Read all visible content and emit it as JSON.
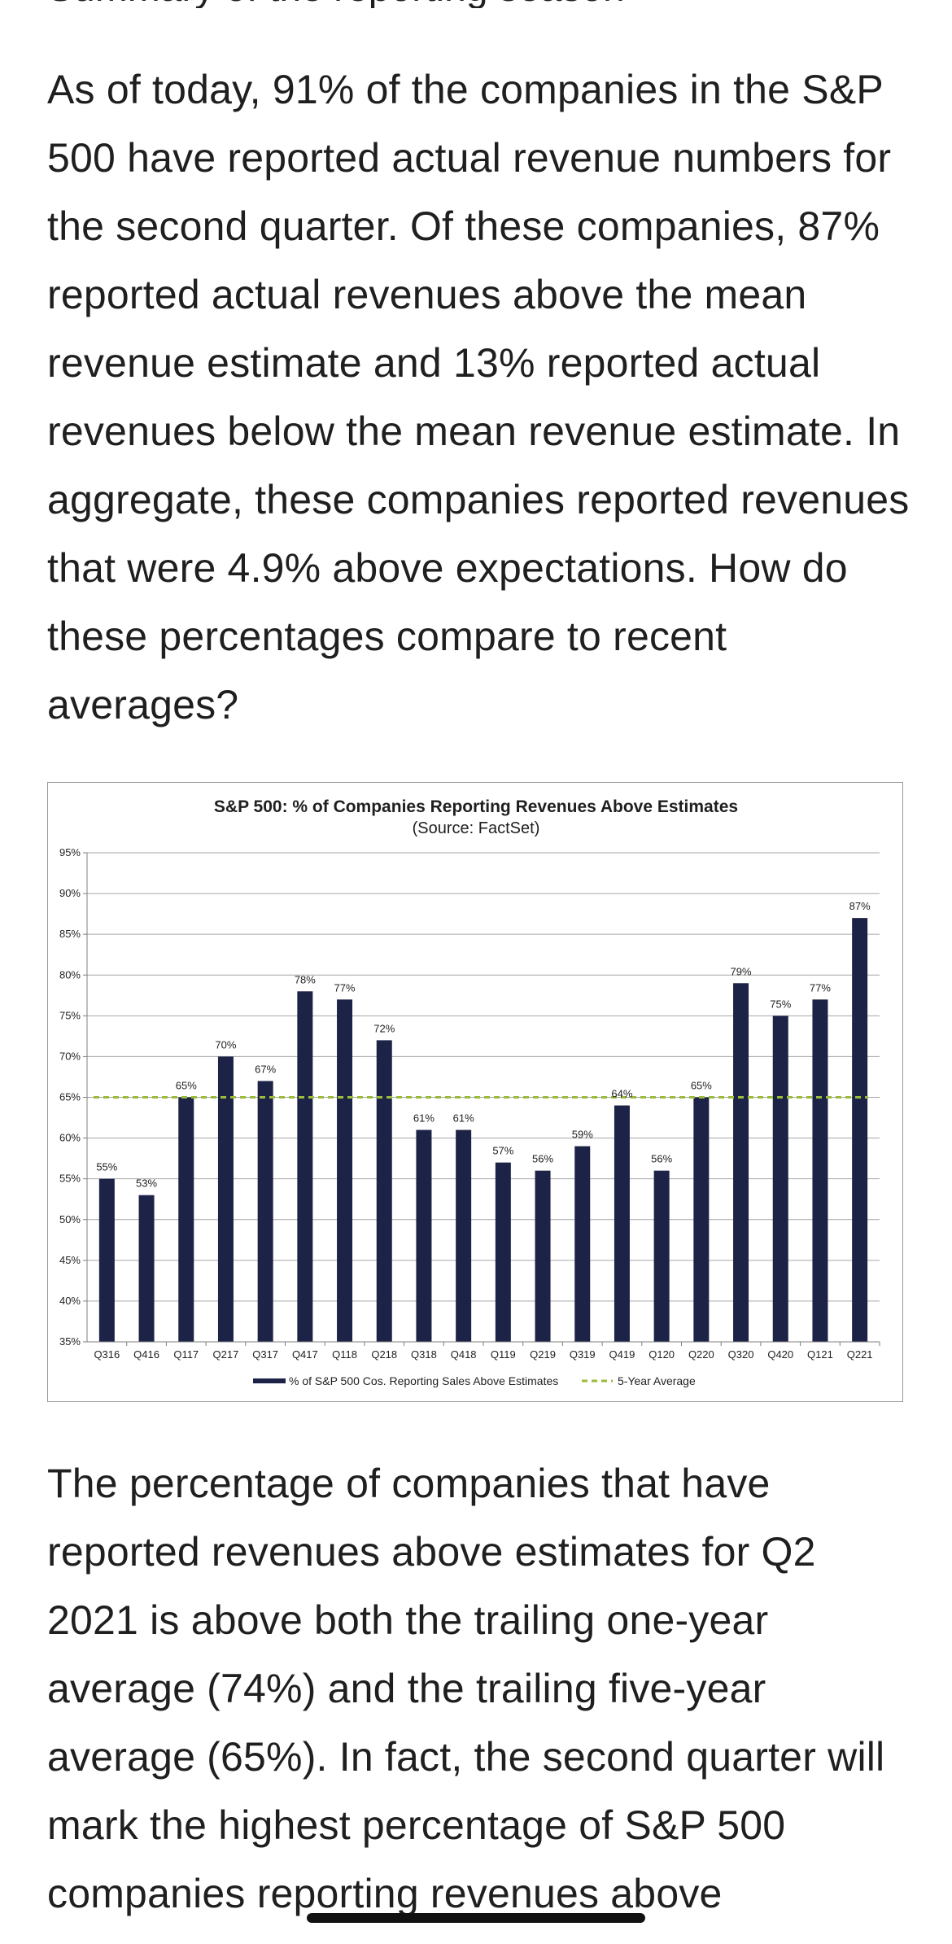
{
  "article": {
    "top_clipped_text": "Summary of the reporting season",
    "paragraph1": "As of today, 91% of the companies in the S&P 500 have reported actual revenue numbers for the second quarter. Of these companies, 87% reported actual revenues above the mean revenue estimate and 13% reported actual revenues below the mean revenue estimate. In aggregate, these companies reported revenues that were 4.9% above expectations. How do these percentages compare to recent averages?",
    "paragraph2": "The percentage of companies that have reported revenues above estimates for Q2 2021 is above both the trailing one-year average (74%) and the trailing five-year average (65%). In fact, the second quarter will mark the highest percentage of S&P 500 companies reporting revenues above"
  },
  "chart_data": {
    "type": "bar",
    "title": "S&P 500: % of Companies Reporting Revenues Above Estimates",
    "subtitle": "(Source: FactSet)",
    "categories": [
      "Q316",
      "Q416",
      "Q117",
      "Q217",
      "Q317",
      "Q417",
      "Q118",
      "Q218",
      "Q318",
      "Q418",
      "Q119",
      "Q219",
      "Q319",
      "Q419",
      "Q120",
      "Q220",
      "Q320",
      "Q420",
      "Q121",
      "Q221"
    ],
    "series": [
      {
        "name": "% of S&P 500 Cos. Reporting Sales Above Estimates",
        "values": [
          55,
          53,
          65,
          70,
          67,
          78,
          77,
          72,
          61,
          61,
          57,
          56,
          59,
          64,
          56,
          65,
          79,
          75,
          77,
          87
        ],
        "data_labels": [
          "55%",
          "53%",
          "65%",
          "70%",
          "67%",
          "78%",
          "77%",
          "72%",
          "61%",
          "61%",
          "57%",
          "56%",
          "59%",
          "64%",
          "56%",
          "65%",
          "79%",
          "75%",
          "77%",
          "87%"
        ],
        "color": "#1c2346"
      },
      {
        "name": "5-Year Average",
        "value": 65,
        "style": "dashed",
        "color": "#9bbb3b"
      }
    ],
    "ylim": [
      35,
      95
    ],
    "yticks": [
      35,
      40,
      45,
      50,
      55,
      60,
      65,
      70,
      75,
      80,
      85,
      90,
      95
    ],
    "ytick_labels": [
      "35%",
      "40%",
      "45%",
      "50%",
      "55%",
      "60%",
      "65%",
      "70%",
      "75%",
      "80%",
      "85%",
      "90%",
      "95%"
    ],
    "grid": true,
    "legend": "bottom"
  },
  "colors": {
    "bar": "#1c2346",
    "average_line": "#9bbb3b",
    "grid": "#a6a6a6",
    "text": "#1f1f1f"
  }
}
